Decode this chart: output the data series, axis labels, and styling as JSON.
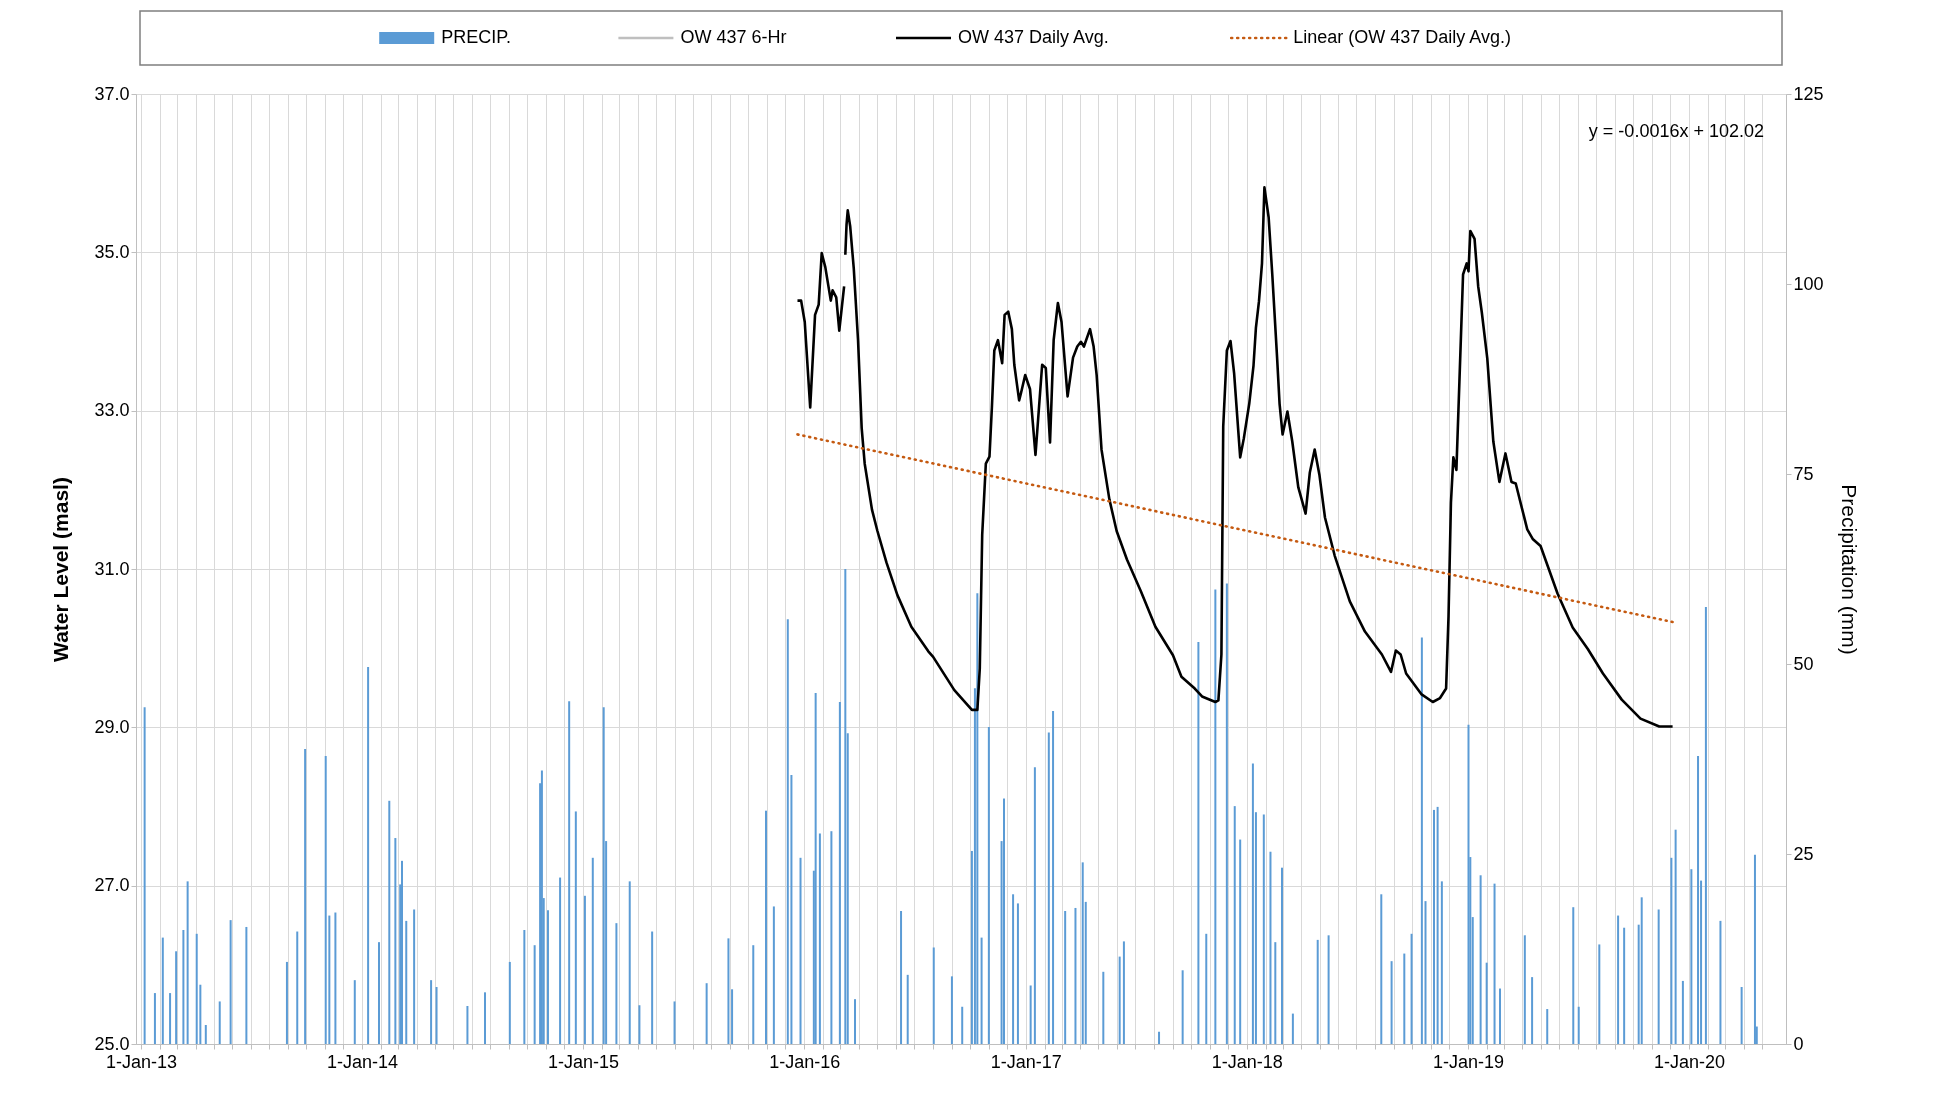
{
  "chart_data": {
    "type": "line",
    "ylabel": "Water Level (masl)",
    "y2label": "Precipitation (mm)",
    "xlim": [
      "2013-01-01",
      "2020-06-01"
    ],
    "xticks": [
      {
        "value": "2013-01-01",
        "label": "1-Jan-13"
      },
      {
        "value": "2013-02-01",
        "label": null
      },
      {
        "value": "2013-03-01",
        "label": null
      },
      {
        "value": "2013-04-01",
        "label": null
      },
      {
        "value": "2013-05-01",
        "label": null
      },
      {
        "value": "2013-06-01",
        "label": null
      },
      {
        "value": "2013-07-01",
        "label": null
      },
      {
        "value": "2013-08-01",
        "label": null
      },
      {
        "value": "2013-09-01",
        "label": null
      },
      {
        "value": "2013-10-01",
        "label": null
      },
      {
        "value": "2013-11-01",
        "label": null
      },
      {
        "value": "2013-12-01",
        "label": null
      },
      {
        "value": "2014-01-01",
        "label": "1-Jan-14"
      },
      {
        "value": "2014-02-01",
        "label": null
      },
      {
        "value": "2014-03-01",
        "label": null
      },
      {
        "value": "2014-04-01",
        "label": null
      },
      {
        "value": "2014-05-01",
        "label": null
      },
      {
        "value": "2014-06-01",
        "label": null
      },
      {
        "value": "2014-07-01",
        "label": null
      },
      {
        "value": "2014-08-01",
        "label": null
      },
      {
        "value": "2014-09-01",
        "label": null
      },
      {
        "value": "2014-10-01",
        "label": null
      },
      {
        "value": "2014-11-01",
        "label": null
      },
      {
        "value": "2014-12-01",
        "label": null
      },
      {
        "value": "2015-01-01",
        "label": "1-Jan-15"
      },
      {
        "value": "2015-02-01",
        "label": null
      },
      {
        "value": "2015-03-01",
        "label": null
      },
      {
        "value": "2015-04-01",
        "label": null
      },
      {
        "value": "2015-05-01",
        "label": null
      },
      {
        "value": "2015-06-01",
        "label": null
      },
      {
        "value": "2015-07-01",
        "label": null
      },
      {
        "value": "2015-08-01",
        "label": null
      },
      {
        "value": "2015-09-01",
        "label": null
      },
      {
        "value": "2015-10-01",
        "label": null
      },
      {
        "value": "2015-11-01",
        "label": null
      },
      {
        "value": "2015-12-01",
        "label": null
      },
      {
        "value": "2016-01-01",
        "label": "1-Jan-16"
      },
      {
        "value": "2016-02-01",
        "label": null
      },
      {
        "value": "2016-03-01",
        "label": null
      },
      {
        "value": "2016-04-01",
        "label": null
      },
      {
        "value": "2016-05-01",
        "label": null
      },
      {
        "value": "2016-06-01",
        "label": null
      },
      {
        "value": "2016-07-01",
        "label": null
      },
      {
        "value": "2016-08-01",
        "label": null
      },
      {
        "value": "2016-09-01",
        "label": null
      },
      {
        "value": "2016-10-01",
        "label": null
      },
      {
        "value": "2016-11-01",
        "label": null
      },
      {
        "value": "2016-12-01",
        "label": null
      },
      {
        "value": "2017-01-01",
        "label": "1-Jan-17"
      },
      {
        "value": "2017-02-01",
        "label": null
      },
      {
        "value": "2017-03-01",
        "label": null
      },
      {
        "value": "2017-04-01",
        "label": null
      },
      {
        "value": "2017-05-01",
        "label": null
      },
      {
        "value": "2017-06-01",
        "label": null
      },
      {
        "value": "2017-07-01",
        "label": null
      },
      {
        "value": "2017-08-01",
        "label": null
      },
      {
        "value": "2017-09-01",
        "label": null
      },
      {
        "value": "2017-10-01",
        "label": null
      },
      {
        "value": "2017-11-01",
        "label": null
      },
      {
        "value": "2017-12-01",
        "label": null
      },
      {
        "value": "2018-01-01",
        "label": "1-Jan-18"
      },
      {
        "value": "2018-02-01",
        "label": null
      },
      {
        "value": "2018-03-01",
        "label": null
      },
      {
        "value": "2018-04-01",
        "label": null
      },
      {
        "value": "2018-05-01",
        "label": null
      },
      {
        "value": "2018-06-01",
        "label": null
      },
      {
        "value": "2018-07-01",
        "label": null
      },
      {
        "value": "2018-08-01",
        "label": null
      },
      {
        "value": "2018-09-01",
        "label": null
      },
      {
        "value": "2018-10-01",
        "label": null
      },
      {
        "value": "2018-11-01",
        "label": null
      },
      {
        "value": "2018-12-01",
        "label": null
      },
      {
        "value": "2019-01-01",
        "label": "1-Jan-19"
      },
      {
        "value": "2019-02-01",
        "label": null
      },
      {
        "value": "2019-03-01",
        "label": null
      },
      {
        "value": "2019-04-01",
        "label": null
      },
      {
        "value": "2019-05-01",
        "label": null
      },
      {
        "value": "2019-06-01",
        "label": null
      },
      {
        "value": "2019-07-01",
        "label": null
      },
      {
        "value": "2019-08-01",
        "label": null
      },
      {
        "value": "2019-09-01",
        "label": null
      },
      {
        "value": "2019-10-01",
        "label": null
      },
      {
        "value": "2019-11-01",
        "label": null
      },
      {
        "value": "2019-12-01",
        "label": null
      },
      {
        "value": "2020-01-01",
        "label": "1-Jan-20"
      },
      {
        "value": "2020-02-01",
        "label": null
      },
      {
        "value": "2020-03-01",
        "label": null
      },
      {
        "value": "2020-04-01",
        "label": null
      },
      {
        "value": "2020-05-01",
        "label": null
      }
    ],
    "ylim": [
      25,
      37
    ],
    "yticks": [
      {
        "value": 25,
        "label": "25.0"
      },
      {
        "value": 27,
        "label": "27.0"
      },
      {
        "value": 29,
        "label": "29.0"
      },
      {
        "value": 31,
        "label": "31.0"
      },
      {
        "value": 33,
        "label": "33.0"
      },
      {
        "value": 35,
        "label": "35.0"
      },
      {
        "value": 37,
        "label": "37.0"
      }
    ],
    "y2lim": [
      0,
      125
    ],
    "y2ticks": [
      0,
      25,
      50,
      75,
      100,
      125
    ],
    "grid": true,
    "legend": "top",
    "annotations": [
      "y = -0.0016x + 102.02"
    ],
    "series": [
      {
        "name": "PRECIP.",
        "type": "bar",
        "axis": "y2",
        "color": "#5b9bd5",
        "x": [
          "2013-01-07",
          "2013-01-24",
          "2013-02-06",
          "2013-02-18",
          "2013-02-28",
          "2013-03-12",
          "2013-03-19",
          "2013-04-03",
          "2013-04-09",
          "2013-04-18",
          "2013-05-11",
          "2013-05-29",
          "2013-06-24",
          "2013-08-30",
          "2013-09-16",
          "2013-09-29",
          "2013-11-02",
          "2013-11-08",
          "2013-11-18",
          "2013-12-20",
          "2014-01-11",
          "2014-01-29",
          "2014-02-15",
          "2014-02-25",
          "2014-03-05",
          "2014-03-08",
          "2014-03-15",
          "2014-03-28",
          "2014-04-25",
          "2014-05-04",
          "2014-06-24",
          "2014-07-23",
          "2014-09-02",
          "2014-09-26",
          "2014-10-13",
          "2014-10-22",
          "2014-10-25",
          "2014-10-28",
          "2014-11-04",
          "2014-11-24",
          "2014-12-09",
          "2014-12-20",
          "2015-01-04",
          "2015-01-17",
          "2015-02-04",
          "2015-02-08",
          "2015-02-25",
          "2015-03-19",
          "2015-04-04",
          "2015-04-25",
          "2015-06-01",
          "2015-07-24",
          "2015-08-29",
          "2015-09-04",
          "2015-10-09",
          "2015-10-30",
          "2015-11-12",
          "2015-12-05",
          "2015-12-11",
          "2015-12-26",
          "2016-01-17",
          "2016-01-20",
          "2016-01-27",
          "2016-02-15",
          "2016-02-29",
          "2016-03-09",
          "2016-03-13",
          "2016-03-25",
          "2016-06-09",
          "2016-06-20",
          "2016-08-02",
          "2016-09-01",
          "2016-09-18",
          "2016-10-04",
          "2016-10-09",
          "2016-10-13",
          "2016-10-20",
          "2016-11-01",
          "2016-11-22",
          "2016-11-26",
          "2016-12-11",
          "2016-12-19",
          "2017-01-09",
          "2017-01-16",
          "2017-02-08",
          "2017-02-15",
          "2017-03-07",
          "2017-03-24",
          "2017-04-05",
          "2017-04-10",
          "2017-05-09",
          "2017-06-05",
          "2017-06-12",
          "2017-08-09",
          "2017-09-17",
          "2017-10-13",
          "2017-10-26",
          "2017-11-10",
          "2017-11-29",
          "2017-12-12",
          "2017-12-21",
          "2018-01-11",
          "2018-01-16",
          "2018-01-29",
          "2018-02-09",
          "2018-02-17",
          "2018-02-28",
          "2018-03-18",
          "2018-04-28",
          "2018-05-16",
          "2018-08-11",
          "2018-08-28",
          "2018-09-18",
          "2018-09-30",
          "2018-10-17",
          "2018-10-23",
          "2018-11-06",
          "2018-11-12",
          "2018-11-19",
          "2019-01-02",
          "2019-01-05",
          "2019-01-09",
          "2019-01-22",
          "2019-02-01",
          "2019-02-14",
          "2019-02-23",
          "2019-04-05",
          "2019-04-17",
          "2019-05-12",
          "2019-06-24",
          "2019-07-03",
          "2019-08-06",
          "2019-09-06",
          "2019-09-16",
          "2019-10-10",
          "2019-10-15",
          "2019-11-12",
          "2019-12-03",
          "2019-12-10",
          "2019-12-22",
          "2020-01-05",
          "2020-01-16",
          "2020-01-21",
          "2020-01-29",
          "2020-02-22",
          "2020-03-28",
          "2020-04-19",
          "2020-04-22"
        ],
        "values": [
          44.3,
          6.7,
          14.0,
          6.7,
          12.2,
          15.0,
          21.4,
          14.5,
          7.8,
          2.5,
          5.6,
          16.3,
          15.4,
          10.8,
          14.8,
          38.8,
          37.9,
          16.9,
          17.3,
          8.4,
          49.6,
          13.4,
          32.0,
          27.1,
          21.0,
          24.1,
          16.2,
          17.7,
          8.4,
          7.5,
          5.0,
          6.8,
          10.8,
          15.0,
          13.0,
          34.3,
          36.0,
          19.2,
          17.6,
          21.9,
          45.1,
          30.6,
          19.5,
          24.5,
          44.3,
          26.7,
          15.9,
          21.4,
          5.1,
          14.8,
          5.6,
          8.0,
          13.9,
          7.2,
          13.0,
          30.7,
          18.1,
          55.9,
          35.4,
          24.5,
          22.8,
          46.2,
          27.7,
          28.0,
          45.0,
          62.5,
          40.9,
          5.9,
          17.5,
          9.1,
          12.7,
          8.9,
          4.9,
          25.4,
          46.8,
          59.3,
          14.0,
          41.7,
          26.7,
          32.3,
          19.7,
          18.5,
          7.7,
          36.4,
          41.0,
          43.8,
          17.5,
          17.9,
          23.9,
          18.7,
          9.5,
          11.5,
          13.5,
          1.6,
          9.7,
          52.9,
          14.5,
          59.8,
          60.6,
          31.3,
          26.9,
          36.9,
          30.5,
          30.2,
          25.3,
          13.4,
          23.2,
          4.0,
          13.7,
          14.3,
          19.7,
          10.9,
          11.9,
          14.5,
          53.5,
          18.8,
          30.8,
          31.2,
          21.4,
          42.0,
          24.6,
          16.7,
          22.2,
          10.7,
          21.1,
          7.3,
          14.3,
          8.8,
          4.6,
          18.0,
          4.9,
          13.1,
          16.9,
          15.3,
          15.7,
          19.3,
          17.7,
          24.5,
          28.2,
          8.3,
          23.0,
          37.9,
          21.5,
          57.5,
          16.2,
          7.5,
          24.9,
          2.3
        ]
      },
      {
        "name": "OW 437 6-Hr",
        "color": "#bfbfbf"
      },
      {
        "name": "OW 437 Daily Avg.",
        "color": "#000000",
        "line_style": "solid",
        "x": [
          "2015-12-21",
          "2015-12-27",
          "2016-01-02",
          "2016-01-11",
          "2016-01-19",
          "2016-01-25",
          "2016-01-30",
          "2016-02-05",
          "2016-02-14",
          "2016-02-17",
          "2016-02-23",
          "2016-02-28",
          "2016-03-07",
          "2016-03-08",
          "2016-03-09",
          "2016-03-11",
          "2016-03-13",
          "2016-03-17",
          "2016-03-23",
          "2016-03-30",
          "2016-04-05",
          "2016-04-10",
          "2016-04-22",
          "2016-05-01",
          "2016-05-16",
          "2016-06-03",
          "2016-06-26",
          "2016-07-24",
          "2016-08-01",
          "2016-09-05",
          "2016-10-04",
          "2016-10-13",
          "2016-10-17",
          "2016-10-21",
          "2016-10-27",
          "2016-11-02",
          "2016-11-06",
          "2016-11-10",
          "2016-11-16",
          "2016-11-23",
          "2016-11-27",
          "2016-12-03",
          "2016-12-09",
          "2016-12-13",
          "2016-12-21",
          "2016-12-24",
          "2016-12-31",
          "2017-01-08",
          "2017-01-17",
          "2017-01-28",
          "2017-02-03",
          "2017-02-10",
          "2017-02-16",
          "2017-02-23",
          "2017-03-01",
          "2017-03-11",
          "2017-03-20",
          "2017-03-27",
          "2017-04-02",
          "2017-04-07",
          "2017-04-17",
          "2017-04-23",
          "2017-04-28",
          "2017-05-06",
          "2017-05-19",
          "2017-05-31",
          "2017-06-17",
          "2017-07-10",
          "2017-08-03",
          "2017-09-01",
          "2017-09-15",
          "2017-10-07",
          "2017-10-19",
          "2017-11-10",
          "2017-11-15",
          "2017-11-20",
          "2017-11-23",
          "2017-11-29",
          "2017-12-05",
          "2017-12-11",
          "2017-12-21",
          "2017-12-27",
          "2018-01-05",
          "2018-01-12",
          "2018-01-16",
          "2018-01-21",
          "2018-01-26",
          "2018-01-30",
          "2018-02-06",
          "2018-02-12",
          "2018-02-20",
          "2018-02-24",
          "2018-03-01",
          "2018-03-09",
          "2018-03-17",
          "2018-03-27",
          "2018-04-08",
          "2018-04-15",
          "2018-04-23",
          "2018-05-01",
          "2018-05-10",
          "2018-05-26",
          "2018-06-20",
          "2018-07-15",
          "2018-08-12",
          "2018-08-27",
          "2018-09-04",
          "2018-09-12",
          "2018-09-21",
          "2018-10-16",
          "2018-11-04",
          "2018-11-16",
          "2018-11-26",
          "2018-11-30",
          "2018-12-04",
          "2018-12-08",
          "2018-12-13",
          "2018-12-18",
          "2018-12-24",
          "2018-12-30",
          "2019-01-02",
          "2019-01-05",
          "2019-01-12",
          "2019-01-18",
          "2019-01-24",
          "2019-02-02",
          "2019-02-12",
          "2019-02-22",
          "2019-03-04",
          "2019-03-14",
          "2019-03-21",
          "2019-04-09",
          "2019-04-18",
          "2019-05-01",
          "2019-05-29",
          "2019-06-23",
          "2019-07-18",
          "2019-08-12",
          "2019-09-12",
          "2019-10-13",
          "2019-11-13",
          "2019-12-05"
        ],
        "values": [
          34.39,
          34.39,
          34.12,
          33.04,
          34.21,
          34.34,
          34.99,
          34.81,
          34.39,
          34.52,
          34.43,
          34.01,
          34.57,
          null,
          34.97,
          35.35,
          35.53,
          35.33,
          34.79,
          33.89,
          32.78,
          32.33,
          31.75,
          31.48,
          31.08,
          30.67,
          30.27,
          29.96,
          29.89,
          29.47,
          29.22,
          29.22,
          29.74,
          31.43,
          32.33,
          32.42,
          33.04,
          33.76,
          33.89,
          33.6,
          34.21,
          34.25,
          34.03,
          33.58,
          33.13,
          33.22,
          33.45,
          33.27,
          32.44,
          33.58,
          33.54,
          32.6,
          33.89,
          34.36,
          34.12,
          33.18,
          33.67,
          33.81,
          33.87,
          33.81,
          34.03,
          33.81,
          33.45,
          32.51,
          31.88,
          31.48,
          31.12,
          30.72,
          30.27,
          29.91,
          29.64,
          29.49,
          29.39,
          29.32,
          29.34,
          29.92,
          32.8,
          33.76,
          33.88,
          33.47,
          32.41,
          32.65,
          33.09,
          33.57,
          34.05,
          34.38,
          34.86,
          35.82,
          35.44,
          34.72,
          33.66,
          33.09,
          32.7,
          32.99,
          32.61,
          32.03,
          31.7,
          32.22,
          32.51,
          32.18,
          31.65,
          31.17,
          30.59,
          30.21,
          29.92,
          29.7,
          29.97,
          29.92,
          29.68,
          29.42,
          29.32,
          29.37,
          29.49,
          30.4,
          31.84,
          32.41,
          32.25,
          33.37,
          34.72,
          34.86,
          34.76,
          35.27,
          35.17,
          34.57,
          34.24,
          33.66,
          32.61,
          32.1,
          32.46,
          32.1,
          32.08,
          31.5,
          31.38,
          31.29,
          30.69,
          30.26,
          29.99,
          29.68,
          29.35,
          29.11,
          29.01,
          29.01
        ]
      },
      {
        "name": "Linear (OW 437 Daily Avg.)",
        "color": "#c55a11",
        "line_style": "dotted",
        "x": [
          "2015-12-21",
          "2019-12-05"
        ],
        "values": [
          32.7,
          30.33
        ]
      }
    ]
  }
}
